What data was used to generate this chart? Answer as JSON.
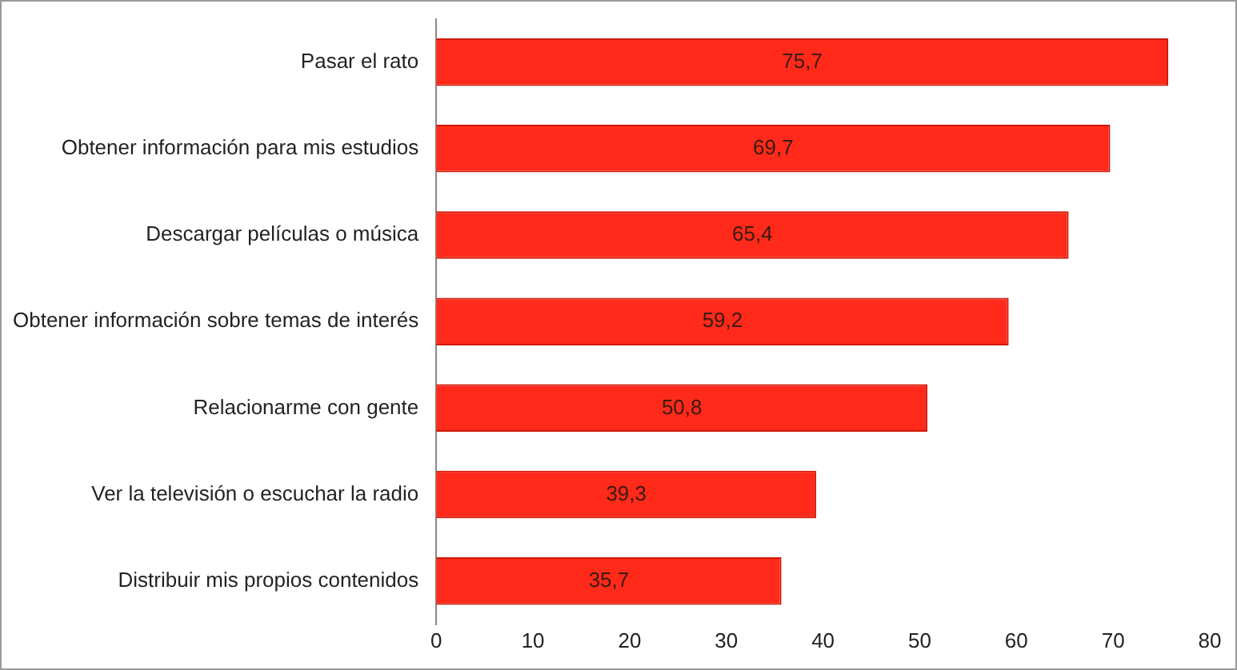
{
  "chart_data": {
    "type": "bar",
    "orientation": "horizontal",
    "categories": [
      "Pasar el rato",
      "Obtener información para mis estudios",
      "Descargar películas o música",
      "Obtener información sobre temas de interés",
      "Relacionarme con gente",
      "Ver la televisión o escuchar la radio",
      "Distribuir mis propios contenidos"
    ],
    "values": [
      75.7,
      69.7,
      65.4,
      59.2,
      50.8,
      39.3,
      35.7
    ],
    "value_labels": [
      "75,7",
      "69,7",
      "65,4",
      "59,2",
      "50,8",
      "39,3",
      "35,7"
    ],
    "color": "#ff2a1a",
    "xlim": [
      0,
      80
    ],
    "xticks": [
      0,
      10,
      20,
      30,
      40,
      50,
      60,
      70,
      80
    ],
    "grid": false,
    "legend": false
  }
}
